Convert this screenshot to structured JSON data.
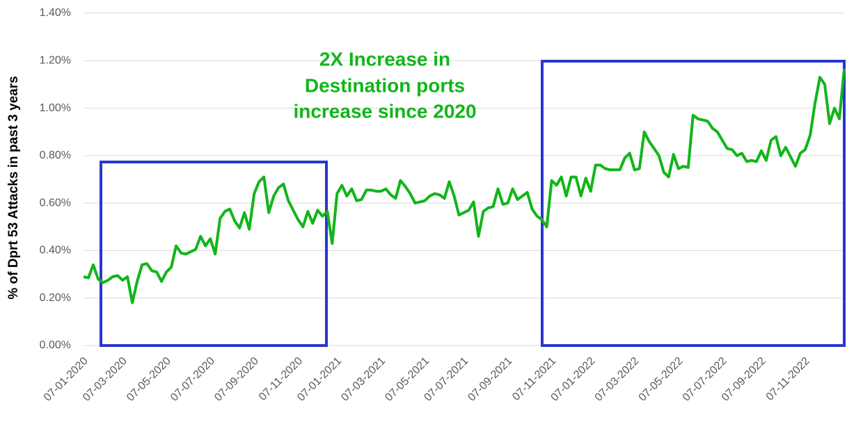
{
  "chart_data": {
    "type": "line",
    "ylabel": "% of Dprt 53 Attacks in past 3 years",
    "annotation": [
      "2X Increase in",
      "Destination ports",
      "increase since 2020"
    ],
    "color": "#11b519",
    "grid": true,
    "ylim": [
      0,
      1.4
    ],
    "yticks": [
      {
        "value": 0,
        "label": "0.00%"
      },
      {
        "value": 0.2,
        "label": "0.20%"
      },
      {
        "value": 0.4,
        "label": "0.40%"
      },
      {
        "value": 0.6,
        "label": "0.60%"
      },
      {
        "value": 0.8,
        "label": "0.80%"
      },
      {
        "value": 1.0,
        "label": "1.00%"
      },
      {
        "value": 1.2,
        "label": "1.20%"
      },
      {
        "value": 1.4,
        "label": "1.40%"
      }
    ],
    "categories": [
      "07-01-2020",
      null,
      null,
      null,
      null,
      null,
      null,
      null,
      "07-03-2020",
      null,
      null,
      null,
      null,
      null,
      null,
      null,
      null,
      "07-05-2020",
      null,
      null,
      null,
      null,
      null,
      null,
      null,
      null,
      "07-07-2020",
      null,
      null,
      null,
      null,
      null,
      null,
      null,
      null,
      "07-09-2020",
      null,
      null,
      null,
      null,
      null,
      null,
      null,
      null,
      "07-11-2020",
      null,
      null,
      null,
      null,
      null,
      null,
      null,
      "07-01-2021",
      null,
      null,
      null,
      null,
      null,
      null,
      null,
      null,
      "07-03-2021",
      null,
      null,
      null,
      null,
      null,
      null,
      null,
      null,
      "07-05-2021",
      null,
      null,
      null,
      null,
      null,
      null,
      null,
      "07-07-2021",
      null,
      null,
      null,
      null,
      null,
      null,
      null,
      null,
      "07-09-2021",
      null,
      null,
      null,
      null,
      null,
      null,
      null,
      null,
      "07-11-2021",
      null,
      null,
      null,
      null,
      null,
      null,
      null,
      "07-01-2022",
      null,
      null,
      null,
      null,
      null,
      null,
      null,
      null,
      "07-03-2022",
      null,
      null,
      null,
      null,
      null,
      null,
      null,
      null,
      "07-05-2022",
      null,
      null,
      null,
      null,
      null,
      null,
      null,
      null,
      "07-07-2022",
      null,
      null,
      null,
      null,
      null,
      null,
      null,
      "07-09-2022",
      null,
      null,
      null,
      null,
      null,
      null,
      null,
      null,
      "07-11-2022",
      null,
      null,
      null,
      null,
      null,
      null,
      null,
      null
    ],
    "values": [
      0.29,
      0.285,
      0.34,
      0.28,
      0.265,
      0.275,
      0.29,
      0.295,
      0.275,
      0.29,
      0.18,
      0.27,
      0.34,
      0.345,
      0.315,
      0.31,
      0.27,
      0.31,
      0.33,
      0.42,
      0.39,
      0.385,
      0.395,
      0.405,
      0.46,
      0.42,
      0.45,
      0.385,
      0.535,
      0.565,
      0.575,
      0.525,
      0.495,
      0.56,
      0.49,
      0.64,
      0.69,
      0.71,
      0.56,
      0.63,
      0.665,
      0.68,
      0.61,
      0.57,
      0.53,
      0.5,
      0.565,
      0.515,
      0.57,
      0.545,
      0.565,
      0.43,
      0.64,
      0.675,
      0.63,
      0.66,
      0.61,
      0.615,
      0.655,
      0.655,
      0.65,
      0.65,
      0.66,
      0.635,
      0.62,
      0.695,
      0.67,
      0.64,
      0.6,
      0.605,
      0.61,
      0.63,
      0.64,
      0.635,
      0.62,
      0.69,
      0.63,
      0.55,
      0.56,
      0.57,
      0.605,
      0.46,
      0.565,
      0.58,
      0.585,
      0.66,
      0.595,
      0.6,
      0.66,
      0.615,
      0.63,
      0.645,
      0.575,
      0.545,
      0.53,
      0.5,
      0.695,
      0.675,
      0.71,
      0.63,
      0.71,
      0.71,
      0.63,
      0.705,
      0.65,
      0.76,
      0.76,
      0.745,
      0.74,
      0.74,
      0.74,
      0.79,
      0.81,
      0.74,
      0.745,
      0.9,
      0.86,
      0.83,
      0.8,
      0.73,
      0.71,
      0.805,
      0.745,
      0.755,
      0.75,
      0.97,
      0.955,
      0.95,
      0.945,
      0.915,
      0.9,
      0.865,
      0.83,
      0.825,
      0.8,
      0.81,
      0.775,
      0.78,
      0.775,
      0.82,
      0.78,
      0.865,
      0.88,
      0.8,
      0.835,
      0.795,
      0.755,
      0.81,
      0.825,
      0.885,
      1.02,
      1.13,
      1.1,
      0.935,
      1.0,
      0.955,
      1.165
    ]
  }
}
